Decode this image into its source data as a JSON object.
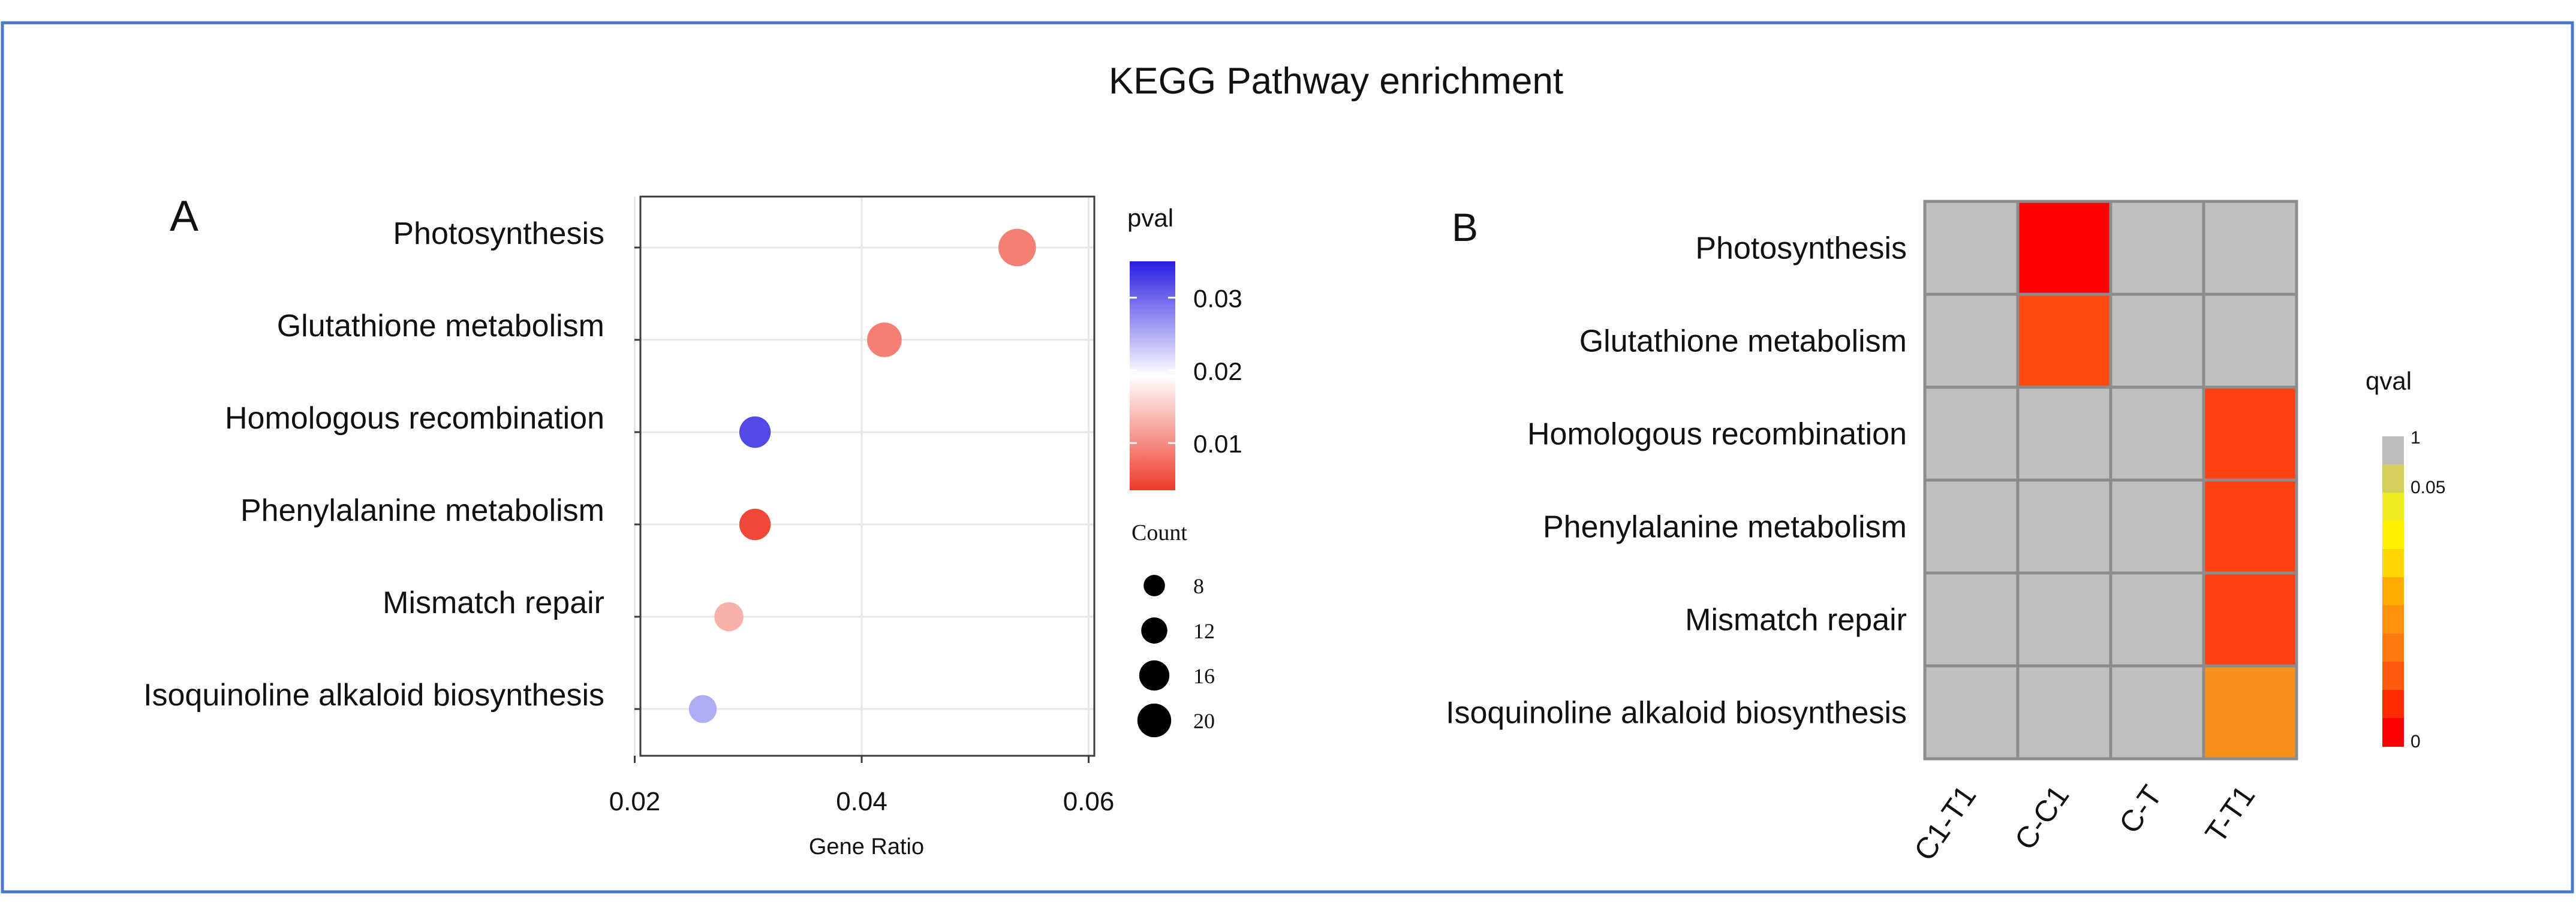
{
  "figure": {
    "title": "KEGG Pathway enrichment",
    "border_color": "#4a78c8"
  },
  "chart_data": [
    {
      "panel": "A",
      "type": "scatter",
      "title": "",
      "xlabel": "Gene Ratio",
      "ylabel": "",
      "xlim": [
        0.0205,
        0.0605
      ],
      "x_ticks": [
        0.02,
        0.04,
        0.06
      ],
      "x_tick_labels": [
        "0.02",
        "0.04",
        "0.06"
      ],
      "grid": true,
      "categories": [
        "Photosynthesis",
        "Glutathione metabolism",
        "Homologous recombination",
        "Phenylalanine metabolism",
        "Mismatch repair",
        "Isoquinoline alkaloid biosynthesis"
      ],
      "points": [
        {
          "term": "Photosynthesis",
          "x": 0.0537,
          "count": 20,
          "pval": 0.009
        },
        {
          "term": "Glutathione metabolism",
          "x": 0.042,
          "count": 17,
          "pval": 0.009
        },
        {
          "term": "Homologous recombination",
          "x": 0.0306,
          "count": 14,
          "pval": 0.032
        },
        {
          "term": "Phenylalanine metabolism",
          "x": 0.0306,
          "count": 14,
          "pval": 0.0045
        },
        {
          "term": "Mismatch repair",
          "x": 0.0283,
          "count": 12,
          "pval": 0.013
        },
        {
          "term": "Isoquinoline alkaloid biosynthesis",
          "x": 0.026,
          "count": 11,
          "pval": 0.025
        }
      ],
      "color_legend": {
        "title": "pval",
        "range": [
          0.0035,
          0.035
        ],
        "ticks": [
          0.03,
          0.02,
          0.01
        ],
        "tick_labels": [
          "0.03",
          "0.02",
          "0.01"
        ],
        "colors": [
          "#ee3b2a",
          "#ffffff",
          "#2a1ee0"
        ]
      },
      "size_legend": {
        "title": "Count",
        "values": [
          8,
          12,
          16,
          20
        ],
        "labels": [
          "8",
          "12",
          "16",
          "20"
        ]
      }
    },
    {
      "panel": "B",
      "type": "heatmap",
      "rows": [
        "Photosynthesis",
        "Glutathione metabolism",
        "Homologous recombination",
        "Phenylalanine metabolism",
        "Mismatch repair",
        "Isoquinoline alkaloid biosynthesis"
      ],
      "columns": [
        "C1-T1",
        "C-C1",
        "C-T",
        "T-T1"
      ],
      "values": [
        [
          null,
          "#ff0000",
          null,
          null
        ],
        [
          null,
          "#ff4a10",
          null,
          null
        ],
        [
          null,
          null,
          null,
          "#ff4010"
        ],
        [
          null,
          null,
          null,
          "#ff4010"
        ],
        [
          null,
          null,
          null,
          "#ff4010"
        ],
        [
          null,
          null,
          null,
          "#f7901c"
        ]
      ],
      "na_color": "#c0c0c0",
      "color_legend": {
        "title": "qval",
        "labels": [
          "1",
          "0.05",
          "0"
        ],
        "colors": [
          "#bdbdbd",
          "#d2cf5c",
          "#f0ee22",
          "#fff100",
          "#ffd500",
          "#ffaa00",
          "#ff9010",
          "#ff7a10",
          "#ff5a10",
          "#ff2a00",
          "#ff0000"
        ]
      }
    }
  ]
}
